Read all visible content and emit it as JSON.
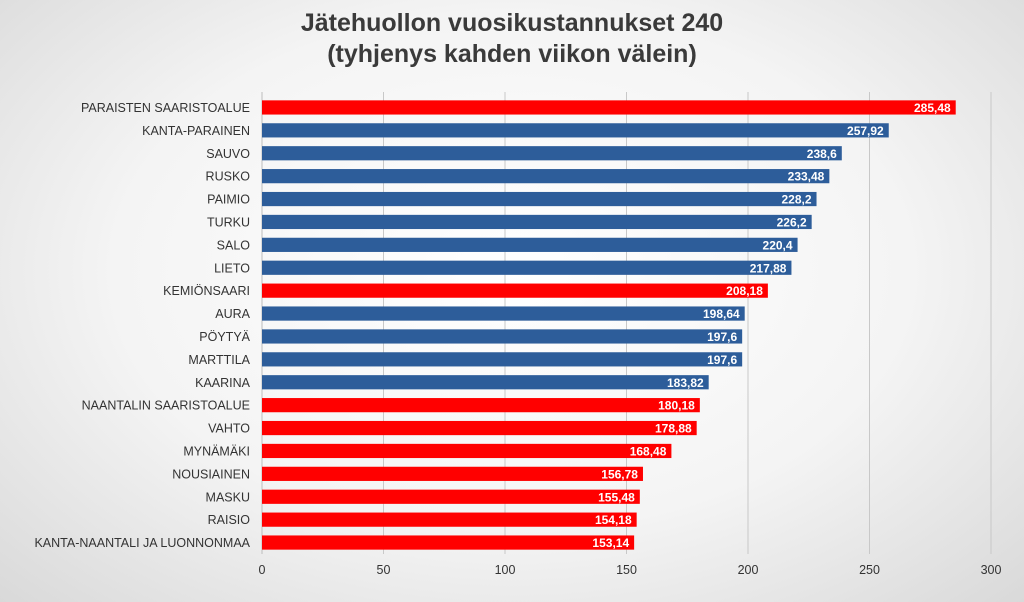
{
  "chart_data": {
    "type": "bar",
    "orientation": "horizontal",
    "title_lines": [
      "Jätehuollon vuosikustannukset 240",
      "(tyhjenys kahden viikon välein)"
    ],
    "xlim": [
      0,
      300
    ],
    "xticks": [
      0,
      50,
      100,
      150,
      200,
      250,
      300
    ],
    "grid": true,
    "categories": [
      "PARAISTEN SAARISTOALUE",
      "KANTA-PARAINEN",
      "SAUVO",
      "RUSKO",
      "PAIMIO",
      "TURKU",
      "SALO",
      "LIETO",
      "KEMIÖNSAARI",
      "AURA",
      "PÖYTYÄ",
      "MARTTILA",
      "KAARINA",
      "NAANTALIN SAARISTOALUE",
      "VAHTO",
      "MYNÄMÄKI",
      "NOUSIAINEN",
      "MASKU",
      "RAISIO",
      "KANTA-NAANTALI JA LUONNONMAA"
    ],
    "values": [
      285.48,
      257.92,
      238.6,
      233.48,
      228.2,
      226.2,
      220.4,
      217.88,
      208.18,
      198.64,
      197.6,
      197.6,
      183.82,
      180.18,
      178.88,
      168.48,
      156.78,
      155.48,
      154.18,
      153.14
    ],
    "value_labels": [
      "285,48",
      "257,92",
      "238,6",
      "233,48",
      "228,2",
      "226,2",
      "220,4",
      "217,88",
      "208,18",
      "198,64",
      "197,6",
      "197,6",
      "183,82",
      "180,18",
      "178,88",
      "168,48",
      "156,78",
      "155,48",
      "154,18",
      "153,14"
    ],
    "bar_colors": [
      "red",
      "blue",
      "blue",
      "blue",
      "blue",
      "blue",
      "blue",
      "blue",
      "red",
      "blue",
      "blue",
      "blue",
      "blue",
      "red",
      "red",
      "red",
      "red",
      "red",
      "red",
      "red"
    ],
    "palette": {
      "red": "#ff0000",
      "blue": "#2d5d9a"
    }
  }
}
